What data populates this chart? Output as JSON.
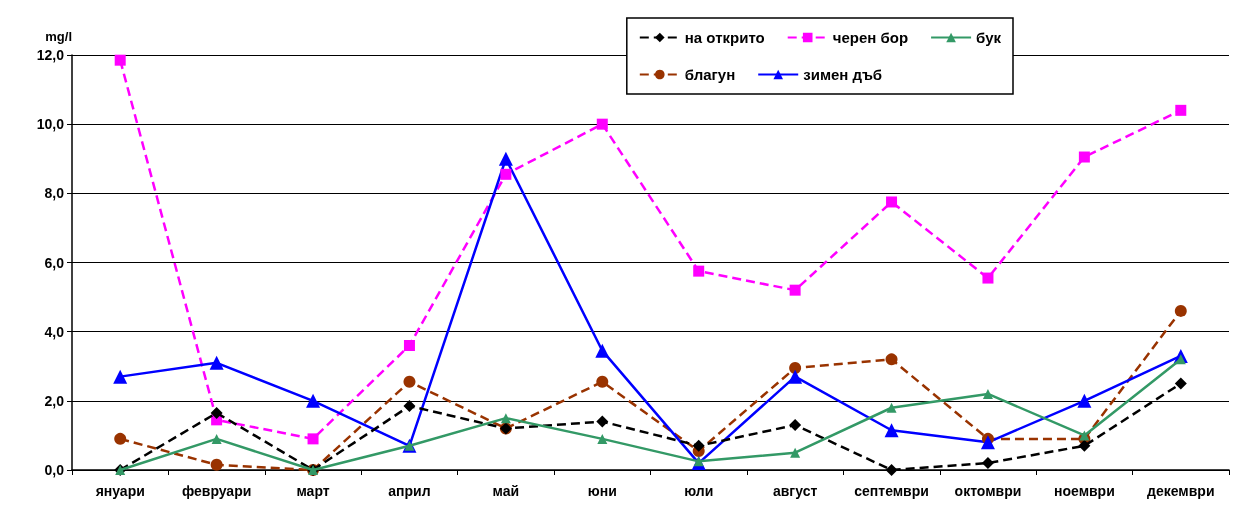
{
  "chart_data": {
    "type": "line",
    "ylabel": "mg/l",
    "categories": [
      "януари",
      "февруари",
      "март",
      "април",
      "май",
      "юни",
      "юли",
      "август",
      "септември",
      "октомври",
      "ноември",
      "декември"
    ],
    "series": [
      {
        "name": "на открито",
        "color": "#000000",
        "marker": "diamond",
        "line_style": "dashed",
        "values": [
          0,
          1.65,
          0,
          1.85,
          1.2,
          1.4,
          0.7,
          1.3,
          0,
          0.2,
          0.7,
          2.5
        ]
      },
      {
        "name": "черен бор",
        "color": "#ff00ff",
        "marker": "square",
        "line_style": "dashed",
        "values": [
          11.85,
          1.45,
          0.9,
          3.6,
          8.55,
          10.0,
          5.75,
          5.2,
          7.75,
          5.55,
          9.05,
          10.4
        ]
      },
      {
        "name": "бук",
        "color": "#339966",
        "marker": "triangle",
        "line_style": "solid",
        "values": [
          0,
          0.9,
          0,
          0.7,
          1.5,
          0.9,
          0.25,
          0.5,
          1.8,
          2.2,
          1.0,
          3.2
        ]
      },
      {
        "name": "благун",
        "color": "#993300",
        "marker": "circle",
        "line_style": "dashed",
        "values": [
          0.9,
          0.15,
          0,
          2.55,
          1.2,
          2.55,
          0.55,
          2.95,
          3.2,
          0.9,
          0.9,
          4.6
        ]
      },
      {
        "name": "зимен дъб",
        "color": "#0000ff",
        "marker": "triangle",
        "line_style": "solid",
        "values": [
          2.7,
          3.1,
          2.0,
          0.7,
          9.0,
          3.45,
          0.2,
          2.7,
          1.15,
          0.8,
          2.0,
          3.3
        ]
      }
    ],
    "ylim": [
      0,
      12
    ],
    "yticks": [
      {
        "value": 0,
        "label": "0,0"
      },
      {
        "value": 2,
        "label": "2,0"
      },
      {
        "value": 4,
        "label": "4,0"
      },
      {
        "value": 6,
        "label": "6,0"
      },
      {
        "value": 8,
        "label": "8,0"
      },
      {
        "value": 10,
        "label": "10,0"
      },
      {
        "value": 12,
        "label": "12,0"
      }
    ],
    "grid": "y",
    "legend": "top right"
  }
}
